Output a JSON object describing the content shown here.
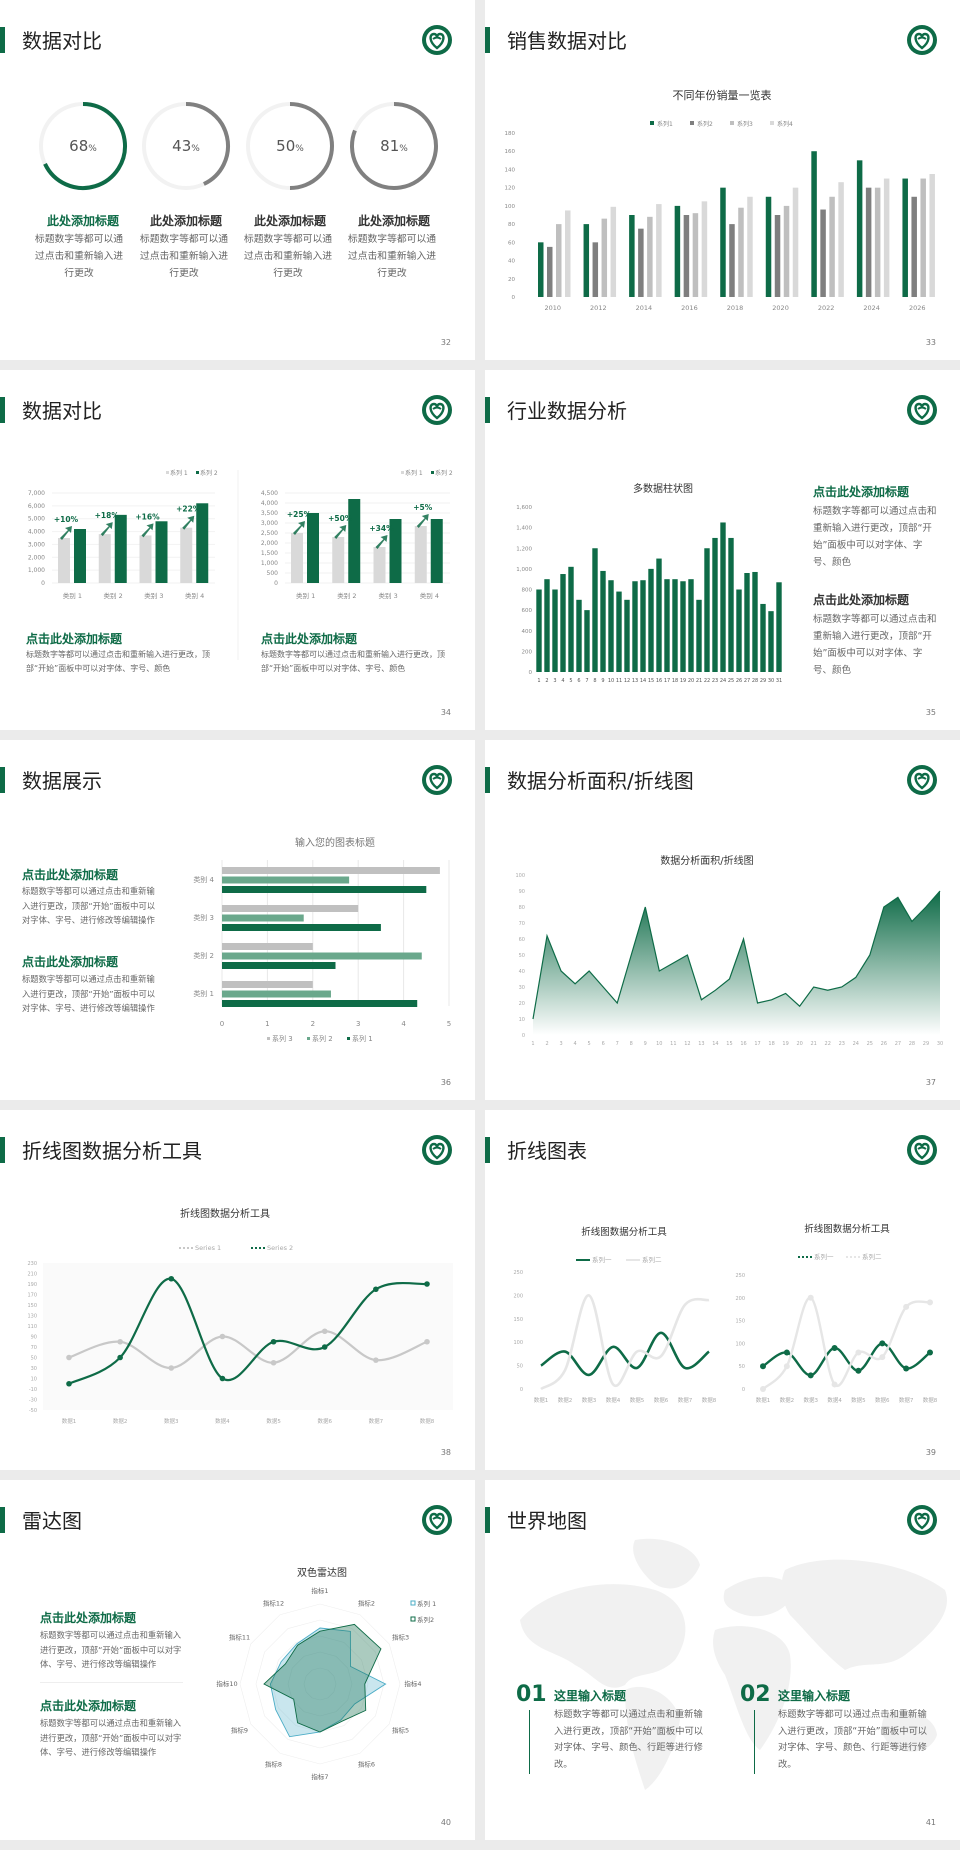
{
  "colors": {
    "brand": "#0e6b47",
    "gray_dark": "#7f7f7f",
    "gray_mid": "#bfbfbf",
    "gray_light": "#d9d9d9",
    "mid_green": "#6aa88c",
    "radar_blue": "#4bacc6"
  },
  "logo_icon": "green-circle-heart-logo",
  "slides": [
    {
      "title": "数据对比",
      "page": "32",
      "rings": [
        {
          "value": 68,
          "label": "68",
          "unit": "%",
          "heading": "此处添加标题",
          "desc": "标题数字等都可以通过点击和重新输入进行更改",
          "color": "#0e6b47"
        },
        {
          "value": 43,
          "label": "43",
          "unit": "%",
          "heading": "此处添加标题",
          "desc": "标题数字等都可以通过点击和重新输入进行更改",
          "color": "#808080"
        },
        {
          "value": 50,
          "label": "50",
          "unit": "%",
          "heading": "此处添加标题",
          "desc": "标题数字等都可以通过点击和重新输入进行更改",
          "color": "#808080"
        },
        {
          "value": 81,
          "label": "81",
          "unit": "%",
          "heading": "此处添加标题",
          "desc": "标题数字等都可以通过点击和重新输入进行更改",
          "color": "#808080"
        }
      ]
    },
    {
      "title": "销售数据对比",
      "page": "33"
    },
    {
      "title": "数据对比",
      "page": "34",
      "blocks": [
        {
          "heading": "点击此处添加标题",
          "desc": "标题数字等都可以通过点击和重新输入进行更改，顶部“开始”面板中可以对字体、字号、颜色"
        },
        {
          "heading": "点击此处添加标题",
          "desc": "标题数字等都可以通过点击和重新输入进行更改，顶部“开始”面板中可以对字体、字号、颜色"
        }
      ]
    },
    {
      "title": "行业数据分析",
      "page": "35",
      "blocks": [
        {
          "heading": "点击此处添加标题",
          "desc": "标题数字等都可以通过点击和重新输入进行更改，顶部“开始”面板中可以对字体、字号、颜色"
        },
        {
          "heading": "点击此处添加标题",
          "desc": "标题数字等都可以通过点击和重新输入进行更改，顶部“开始”面板中可以对字体、字号、颜色"
        }
      ]
    },
    {
      "title": "数据展示",
      "page": "36",
      "blocks": [
        {
          "heading": "点击此处添加标题",
          "desc": "标题数字等都可以通过点击和重新输入进行更改，顶部“开始”面板中可以对字体、字号、进行修改等编辑操作"
        },
        {
          "heading": "点击此处添加标题",
          "desc": "标题数字等都可以通过点击和重新输入进行更改，顶部“开始”面板中可以对字体、字号、进行修改等编辑操作"
        }
      ]
    },
    {
      "title": "数据分析面积/折线图",
      "page": "37"
    },
    {
      "title": "折线图数据分析工具",
      "page": "38"
    },
    {
      "title": "折线图表",
      "page": "39"
    },
    {
      "title": "雷达图",
      "page": "40",
      "blocks": [
        {
          "heading": "点击此处添加标题",
          "desc": "标题数字等都可以通过点击和重新输入进行更改，顶部“开始”面板中可以对字体、字号、进行修改等编辑操作"
        },
        {
          "heading": "点击此处添加标题",
          "desc": "标题数字等都可以通过点击和重新输入进行更改，顶部“开始”面板中可以对字体、字号、进行修改等编辑操作"
        }
      ]
    },
    {
      "title": "世界地图",
      "page": "41",
      "blocks": [
        {
          "num": "01",
          "heading": "这里输入标题",
          "desc": "标题数字等都可以通过点击和重新输入进行更改，顶部“开始”面板中可以对字体、字号、颜色、行距等进行修改。"
        },
        {
          "num": "02",
          "heading": "这里输入标题",
          "desc": "标题数字等都可以通过点击和重新输入进行更改，顶部“开始”面板中可以对字体、字号、颜色、行距等进行修改。"
        }
      ]
    }
  ],
  "chart_data": [
    {
      "slide": "33",
      "type": "bar",
      "title": "不同年份销量一览表",
      "categories": [
        "2010",
        "2012",
        "2014",
        "2016",
        "2018",
        "2020",
        "2022",
        "2024",
        "2026"
      ],
      "ylim": [
        0,
        180
      ],
      "yticks": [
        0,
        20,
        40,
        60,
        80,
        100,
        120,
        140,
        160,
        180
      ],
      "legend": "top",
      "series": [
        {
          "name": "系列1",
          "color": "#0e6b47",
          "values": [
            60,
            80,
            90,
            100,
            120,
            110,
            160,
            150,
            130
          ]
        },
        {
          "name": "系列2",
          "color": "#7f7f7f",
          "values": [
            55,
            60,
            75,
            90,
            80,
            90,
            96,
            120,
            110
          ]
        },
        {
          "name": "系列3",
          "color": "#bfbfbf",
          "values": [
            80,
            86,
            88,
            92,
            98,
            100,
            110,
            120,
            130
          ]
        },
        {
          "name": "系列4",
          "color": "#d9d9d9",
          "values": [
            95,
            99,
            102,
            105,
            110,
            120,
            126,
            130,
            135
          ]
        }
      ]
    },
    {
      "slide": "34",
      "type": "bar",
      "categories": [
        "类别 1",
        "类别 2",
        "类别 3",
        "类别 4"
      ],
      "ylim": [
        0,
        7000
      ],
      "yticks": [
        "0",
        "1,000",
        "2,000",
        "3,000",
        "4,000",
        "5,000",
        "6,000",
        "7,000"
      ],
      "legend": "top-right",
      "annotations": [
        "+10%",
        "+18%",
        "+16%",
        "+22%"
      ],
      "series": [
        {
          "name": "系列 1",
          "color": "#d9d9d9",
          "values": [
            3500,
            3800,
            3700,
            4300
          ]
        },
        {
          "name": "系列 2",
          "color": "#0e6b47",
          "values": [
            4200,
            5300,
            4800,
            6200
          ]
        }
      ]
    },
    {
      "slide": "34",
      "type": "bar",
      "categories": [
        "类别 1",
        "类别 2",
        "类别 3",
        "类别 4"
      ],
      "ylim": [
        0,
        4500
      ],
      "yticks": [
        "0",
        "500",
        "1,000",
        "1,500",
        "2,000",
        "2,500",
        "3,000",
        "3,500",
        "4,000",
        "4,500"
      ],
      "legend": "top-right",
      "annotations": [
        "+25%",
        "+50%",
        "+34%",
        "+5%"
      ],
      "series": [
        {
          "name": "系列 1",
          "color": "#d9d9d9",
          "values": [
            2500,
            2300,
            1800,
            2850
          ]
        },
        {
          "name": "系列 2",
          "color": "#0e6b47",
          "values": [
            3500,
            4200,
            3200,
            3200
          ]
        }
      ]
    },
    {
      "slide": "35",
      "type": "bar",
      "title": "多数据柱状图",
      "ylim": [
        0,
        1600
      ],
      "yticks": [
        "0",
        "200",
        "400",
        "600",
        "800",
        "1,000",
        "1,200",
        "1,400",
        "1,600"
      ],
      "categories": [
        "1",
        "2",
        "3",
        "4",
        "5",
        "6",
        "7",
        "8",
        "9",
        "10",
        "11",
        "12",
        "13",
        "14",
        "15",
        "16",
        "17",
        "18",
        "19",
        "20",
        "21",
        "22",
        "23",
        "24",
        "25",
        "26",
        "27",
        "28",
        "29",
        "30",
        "31"
      ],
      "values": [
        800,
        900,
        800,
        950,
        1020,
        700,
        600,
        1200,
        980,
        890,
        780,
        700,
        880,
        890,
        1000,
        1100,
        900,
        900,
        880,
        900,
        700,
        1200,
        1300,
        1450,
        1300,
        800,
        960,
        970,
        660,
        590,
        870
      ]
    },
    {
      "slide": "36",
      "type": "bar",
      "orientation": "horizontal",
      "title": "输入您的图表标题",
      "categories": [
        "类别 1",
        "类别 2",
        "类别 3",
        "类别 4"
      ],
      "xlim": [
        0,
        5
      ],
      "xticks": [
        "0",
        "1",
        "2",
        "3",
        "4",
        "5"
      ],
      "legend": "bottom",
      "series": [
        {
          "name": "系列 3",
          "color": "#c0c0c0",
          "values": [
            2,
            2,
            3,
            4.8
          ]
        },
        {
          "name": "系列 2",
          "color": "#6aa88c",
          "values": [
            2.4,
            4.4,
            1.8,
            2.8
          ]
        },
        {
          "name": "系列 1",
          "color": "#0e6b47",
          "values": [
            4.3,
            2.5,
            3.5,
            4.5
          ]
        }
      ]
    },
    {
      "slide": "37",
      "type": "area",
      "title": "数据分析面积/折线图",
      "ylim": [
        0,
        100
      ],
      "yticks": [
        "0",
        "10",
        "20",
        "30",
        "40",
        "50",
        "60",
        "70",
        "80",
        "90",
        "100"
      ],
      "x": [
        "1",
        "2",
        "3",
        "4",
        "5",
        "6",
        "7",
        "8",
        "9",
        "10",
        "11",
        "12",
        "13",
        "14",
        "15",
        "16",
        "17",
        "18",
        "19",
        "20",
        "21",
        "22",
        "23",
        "24",
        "25",
        "26",
        "27",
        "28",
        "29",
        "30"
      ],
      "values": [
        10,
        62,
        40,
        32,
        40,
        30,
        20,
        50,
        80,
        40,
        45,
        50,
        22,
        28,
        35,
        60,
        20,
        22,
        26,
        18,
        30,
        28,
        30,
        36,
        50,
        80,
        86,
        71,
        80,
        90
      ]
    },
    {
      "slide": "38",
      "type": "line",
      "title": "折线图数据分析工具",
      "ylim": [
        -50,
        230
      ],
      "yticks": [
        "-50",
        "-30",
        "-10",
        "10",
        "30",
        "50",
        "70",
        "90",
        "110",
        "130",
        "150",
        "170",
        "190",
        "210",
        "230"
      ],
      "legend": "top",
      "categories": [
        "数据1",
        "数据2",
        "数据3",
        "数据4",
        "数据5",
        "数据6",
        "数据7",
        "数据8"
      ],
      "series": [
        {
          "name": "Series 1",
          "color": "#c8c8c8",
          "values": [
            50,
            80,
            30,
            90,
            40,
            100,
            45,
            80
          ]
        },
        {
          "name": "Series 2",
          "color": "#0e6b47",
          "values": [
            0,
            50,
            200,
            10,
            80,
            70,
            180,
            190
          ]
        }
      ]
    },
    {
      "slide": "39",
      "type": "line",
      "title": "折线图数据分析工具",
      "ylim": [
        0,
        250
      ],
      "yticks": [
        "0",
        "50",
        "100",
        "150",
        "200",
        "250"
      ],
      "legend": "top",
      "categories": [
        "数据1",
        "数据2",
        "数据3",
        "数据4",
        "数据5",
        "数据6",
        "数据7",
        "数据8"
      ],
      "series": [
        {
          "name": "系列一",
          "color": "#0e6b47",
          "values": [
            50,
            80,
            30,
            90,
            45,
            120,
            45,
            80
          ]
        },
        {
          "name": "系列二",
          "color": "#e6e6e6",
          "values": [
            0,
            40,
            200,
            10,
            80,
            70,
            180,
            190
          ]
        }
      ]
    },
    {
      "slide": "39",
      "type": "line",
      "title": "折线图数据分析工具",
      "ylim": [
        0,
        250
      ],
      "yticks": [
        "0",
        "50",
        "100",
        "150",
        "200",
        "250"
      ],
      "legend": "top",
      "categories": [
        "数据1",
        "数据2",
        "数据3",
        "数据4",
        "数据5",
        "数据6",
        "数据7",
        "数据8"
      ],
      "series": [
        {
          "name": "系列一",
          "color": "#0e6b47",
          "values": [
            50,
            80,
            30,
            90,
            40,
            100,
            45,
            80
          ]
        },
        {
          "name": "系列二",
          "color": "#e6e6e6",
          "values": [
            0,
            50,
            200,
            10,
            80,
            70,
            180,
            190
          ]
        }
      ]
    },
    {
      "slide": "40",
      "type": "radar",
      "title": "双色雷达图",
      "rmax": 5,
      "legend": "top-right",
      "categories": [
        "指标1",
        "指标2",
        "指标3",
        "指标4",
        "指标5",
        "指标6",
        "指标7",
        "指标8",
        "指标9",
        "指标10",
        "指标11",
        "指标12"
      ],
      "series": [
        {
          "name": "系列 1",
          "color": "#4bacc6",
          "values": [
            3.5,
            3.8,
            2.2,
            4.1,
            2.5,
            2.6,
            3.0,
            3.8,
            3.2,
            3.1,
            2.8,
            2.9
          ]
        },
        {
          "name": "系列2",
          "color": "#0e6b47",
          "values": [
            3.3,
            4.3,
            4.4,
            2.8,
            3.3,
            2.7,
            3.0,
            2.8,
            1.9,
            3.5,
            2.5,
            2.8
          ]
        }
      ]
    }
  ]
}
